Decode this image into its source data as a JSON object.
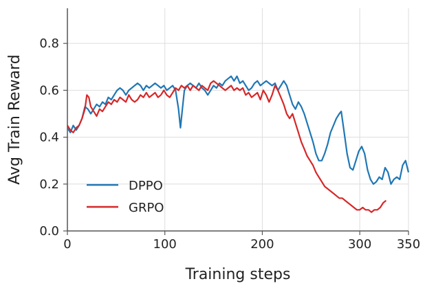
{
  "chart_data": {
    "type": "line",
    "title": "",
    "xlabel": "Training steps",
    "ylabel": "Avg Train Reward",
    "xlim": [
      0,
      350
    ],
    "ylim": [
      0,
      0.95
    ],
    "x_ticks": [
      0,
      100,
      200,
      300,
      350
    ],
    "y_ticks": [
      0.0,
      0.2,
      0.4,
      0.6,
      0.8
    ],
    "x_tick_labels": [
      "0",
      "100",
      "200",
      "300",
      "350"
    ],
    "y_tick_labels": [
      "0.0",
      "0.2",
      "0.4",
      "0.6",
      "0.8"
    ],
    "grid": true,
    "legend_position": "lower-left",
    "series": [
      {
        "name": "DPPO",
        "color": "#1f77b4",
        "points": [
          [
            0,
            0.44
          ],
          [
            3,
            0.42
          ],
          [
            6,
            0.45
          ],
          [
            9,
            0.43
          ],
          [
            12,
            0.45
          ],
          [
            15,
            0.48
          ],
          [
            18,
            0.53
          ],
          [
            21,
            0.52
          ],
          [
            24,
            0.5
          ],
          [
            27,
            0.52
          ],
          [
            30,
            0.54
          ],
          [
            33,
            0.53
          ],
          [
            36,
            0.55
          ],
          [
            39,
            0.54
          ],
          [
            42,
            0.57
          ],
          [
            45,
            0.56
          ],
          [
            48,
            0.58
          ],
          [
            51,
            0.6
          ],
          [
            54,
            0.61
          ],
          [
            57,
            0.6
          ],
          [
            60,
            0.58
          ],
          [
            63,
            0.6
          ],
          [
            66,
            0.61
          ],
          [
            69,
            0.62
          ],
          [
            72,
            0.63
          ],
          [
            75,
            0.62
          ],
          [
            78,
            0.6
          ],
          [
            81,
            0.62
          ],
          [
            84,
            0.61
          ],
          [
            87,
            0.62
          ],
          [
            90,
            0.63
          ],
          [
            93,
            0.62
          ],
          [
            96,
            0.61
          ],
          [
            99,
            0.62
          ],
          [
            102,
            0.6
          ],
          [
            105,
            0.61
          ],
          [
            108,
            0.62
          ],
          [
            111,
            0.6
          ],
          [
            114,
            0.52
          ],
          [
            116,
            0.44
          ],
          [
            118,
            0.52
          ],
          [
            120,
            0.6
          ],
          [
            123,
            0.62
          ],
          [
            126,
            0.63
          ],
          [
            129,
            0.62
          ],
          [
            132,
            0.61
          ],
          [
            135,
            0.63
          ],
          [
            138,
            0.61
          ],
          [
            141,
            0.6
          ],
          [
            144,
            0.58
          ],
          [
            147,
            0.6
          ],
          [
            150,
            0.62
          ],
          [
            153,
            0.61
          ],
          [
            156,
            0.63
          ],
          [
            159,
            0.62
          ],
          [
            162,
            0.64
          ],
          [
            165,
            0.65
          ],
          [
            168,
            0.66
          ],
          [
            171,
            0.64
          ],
          [
            174,
            0.66
          ],
          [
            177,
            0.63
          ],
          [
            180,
            0.64
          ],
          [
            183,
            0.62
          ],
          [
            186,
            0.6
          ],
          [
            189,
            0.61
          ],
          [
            192,
            0.63
          ],
          [
            195,
            0.64
          ],
          [
            198,
            0.62
          ],
          [
            201,
            0.63
          ],
          [
            204,
            0.64
          ],
          [
            207,
            0.63
          ],
          [
            210,
            0.62
          ],
          [
            213,
            0.63
          ],
          [
            216,
            0.6
          ],
          [
            219,
            0.62
          ],
          [
            222,
            0.64
          ],
          [
            225,
            0.62
          ],
          [
            228,
            0.58
          ],
          [
            231,
            0.54
          ],
          [
            234,
            0.52
          ],
          [
            237,
            0.55
          ],
          [
            240,
            0.53
          ],
          [
            243,
            0.5
          ],
          [
            246,
            0.46
          ],
          [
            249,
            0.42
          ],
          [
            252,
            0.38
          ],
          [
            255,
            0.33
          ],
          [
            258,
            0.3
          ],
          [
            261,
            0.3
          ],
          [
            264,
            0.33
          ],
          [
            267,
            0.37
          ],
          [
            270,
            0.42
          ],
          [
            273,
            0.45
          ],
          [
            276,
            0.48
          ],
          [
            279,
            0.5
          ],
          [
            281,
            0.51
          ],
          [
            284,
            0.42
          ],
          [
            287,
            0.33
          ],
          [
            290,
            0.27
          ],
          [
            293,
            0.26
          ],
          [
            296,
            0.3
          ],
          [
            299,
            0.34
          ],
          [
            302,
            0.36
          ],
          [
            305,
            0.33
          ],
          [
            308,
            0.26
          ],
          [
            311,
            0.22
          ],
          [
            314,
            0.2
          ],
          [
            317,
            0.21
          ],
          [
            320,
            0.23
          ],
          [
            323,
            0.22
          ],
          [
            326,
            0.27
          ],
          [
            329,
            0.25
          ],
          [
            332,
            0.2
          ],
          [
            335,
            0.22
          ],
          [
            338,
            0.23
          ],
          [
            341,
            0.22
          ],
          [
            344,
            0.28
          ],
          [
            347,
            0.3
          ],
          [
            350,
            0.25
          ]
        ]
      },
      {
        "name": "GRPO",
        "color": "#d62728",
        "points": [
          [
            0,
            0.45
          ],
          [
            3,
            0.43
          ],
          [
            6,
            0.42
          ],
          [
            9,
            0.44
          ],
          [
            12,
            0.45
          ],
          [
            15,
            0.48
          ],
          [
            18,
            0.52
          ],
          [
            20,
            0.58
          ],
          [
            22,
            0.57
          ],
          [
            24,
            0.53
          ],
          [
            27,
            0.51
          ],
          [
            30,
            0.49
          ],
          [
            33,
            0.52
          ],
          [
            36,
            0.51
          ],
          [
            39,
            0.53
          ],
          [
            42,
            0.55
          ],
          [
            45,
            0.54
          ],
          [
            48,
            0.56
          ],
          [
            51,
            0.55
          ],
          [
            54,
            0.57
          ],
          [
            57,
            0.56
          ],
          [
            60,
            0.55
          ],
          [
            63,
            0.58
          ],
          [
            66,
            0.56
          ],
          [
            69,
            0.55
          ],
          [
            72,
            0.56
          ],
          [
            75,
            0.58
          ],
          [
            78,
            0.57
          ],
          [
            81,
            0.59
          ],
          [
            84,
            0.57
          ],
          [
            87,
            0.58
          ],
          [
            90,
            0.59
          ],
          [
            93,
            0.57
          ],
          [
            96,
            0.58
          ],
          [
            99,
            0.6
          ],
          [
            102,
            0.58
          ],
          [
            105,
            0.57
          ],
          [
            108,
            0.59
          ],
          [
            111,
            0.61
          ],
          [
            114,
            0.6
          ],
          [
            117,
            0.62
          ],
          [
            120,
            0.61
          ],
          [
            123,
            0.62
          ],
          [
            126,
            0.6
          ],
          [
            129,
            0.62
          ],
          [
            132,
            0.61
          ],
          [
            135,
            0.6
          ],
          [
            138,
            0.62
          ],
          [
            141,
            0.61
          ],
          [
            144,
            0.6
          ],
          [
            147,
            0.63
          ],
          [
            150,
            0.64
          ],
          [
            153,
            0.63
          ],
          [
            156,
            0.62
          ],
          [
            159,
            0.61
          ],
          [
            162,
            0.6
          ],
          [
            165,
            0.61
          ],
          [
            168,
            0.62
          ],
          [
            171,
            0.6
          ],
          [
            174,
            0.61
          ],
          [
            177,
            0.6
          ],
          [
            180,
            0.61
          ],
          [
            183,
            0.58
          ],
          [
            186,
            0.59
          ],
          [
            189,
            0.57
          ],
          [
            192,
            0.58
          ],
          [
            195,
            0.59
          ],
          [
            198,
            0.56
          ],
          [
            201,
            0.6
          ],
          [
            204,
            0.58
          ],
          [
            207,
            0.55
          ],
          [
            210,
            0.58
          ],
          [
            213,
            0.62
          ],
          [
            216,
            0.6
          ],
          [
            219,
            0.57
          ],
          [
            222,
            0.54
          ],
          [
            225,
            0.5
          ],
          [
            228,
            0.48
          ],
          [
            231,
            0.5
          ],
          [
            234,
            0.46
          ],
          [
            237,
            0.42
          ],
          [
            240,
            0.38
          ],
          [
            243,
            0.35
          ],
          [
            246,
            0.32
          ],
          [
            249,
            0.3
          ],
          [
            252,
            0.28
          ],
          [
            255,
            0.25
          ],
          [
            258,
            0.23
          ],
          [
            261,
            0.21
          ],
          [
            264,
            0.19
          ],
          [
            267,
            0.18
          ],
          [
            270,
            0.17
          ],
          [
            273,
            0.16
          ],
          [
            276,
            0.15
          ],
          [
            279,
            0.14
          ],
          [
            282,
            0.14
          ],
          [
            285,
            0.13
          ],
          [
            288,
            0.12
          ],
          [
            291,
            0.11
          ],
          [
            294,
            0.1
          ],
          [
            297,
            0.09
          ],
          [
            300,
            0.09
          ],
          [
            303,
            0.1
          ],
          [
            306,
            0.09
          ],
          [
            309,
            0.09
          ],
          [
            312,
            0.08
          ],
          [
            315,
            0.09
          ],
          [
            318,
            0.09
          ],
          [
            321,
            0.1
          ],
          [
            324,
            0.12
          ],
          [
            327,
            0.13
          ]
        ]
      }
    ]
  }
}
